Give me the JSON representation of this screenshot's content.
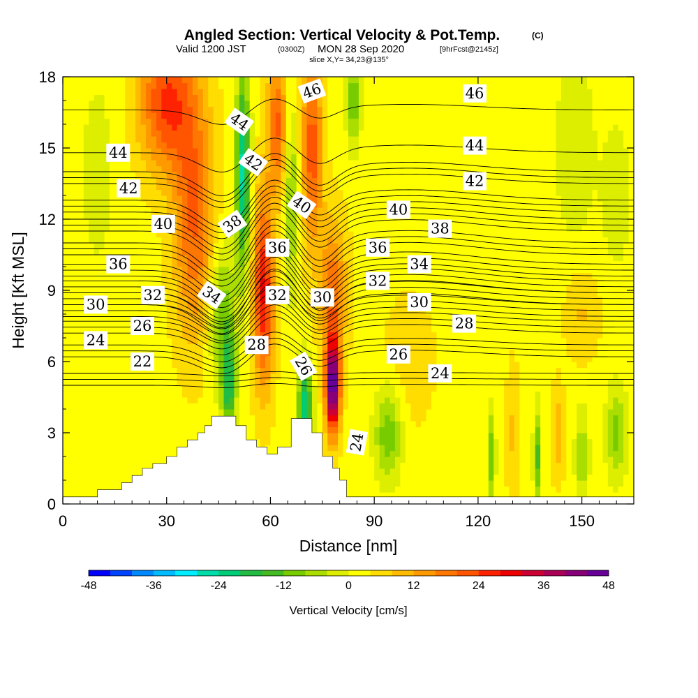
{
  "title": {
    "main": "Angled Section: Vertical Velocity & Pot.Temp.",
    "copyright": "(C)",
    "valid_prefix": "Valid 1200 JST",
    "valid_z": "(0300Z)",
    "valid_date": "MON 28 Sep 2020",
    "forecast": "[9hrFcst@2145z]",
    "slice": "slice X,Y= 34,23@135°"
  },
  "chart_data": {
    "type": "heatmap",
    "xlabel": "Distance [nm]",
    "ylabel": "Height [Kft MSL]",
    "xlim": [
      0,
      165
    ],
    "ylim": [
      0,
      18
    ],
    "x_ticks": [
      0,
      30,
      60,
      90,
      120,
      150
    ],
    "y_ticks": [
      0,
      3,
      6,
      9,
      12,
      15,
      18
    ],
    "colorbar": {
      "title": "Vertical Velocity [cm/s]",
      "min": -48,
      "max": 48,
      "step": 4,
      "tick_values": [
        -48,
        -36,
        -24,
        -12,
        0,
        12,
        24,
        36,
        48
      ],
      "colors": [
        "#0000ff",
        "#0044ff",
        "#0088ff",
        "#00bbff",
        "#00eeff",
        "#00ddaa",
        "#00cc77",
        "#22bb44",
        "#44bb22",
        "#77cc00",
        "#aadd00",
        "#ddee00",
        "#ffff00",
        "#ffdd00",
        "#ffbb00",
        "#ff9900",
        "#ff7700",
        "#ff5500",
        "#ff2200",
        "#ee0000",
        "#cc0033",
        "#aa0055",
        "#880077",
        "#660099"
      ]
    },
    "velocity_features": [
      {
        "x": 10,
        "y": 14,
        "value": -4,
        "sx": 6,
        "sy": 5
      },
      {
        "x": 30,
        "y": 17,
        "value": 22,
        "sx": 8,
        "sy": 3
      },
      {
        "x": 38,
        "y": 12,
        "value": 18,
        "sx": 6,
        "sy": 5
      },
      {
        "x": 46,
        "y": 8,
        "value": -14,
        "sx": 4,
        "sy": 3
      },
      {
        "x": 48,
        "y": 5,
        "value": -20,
        "sx": 2,
        "sy": 2
      },
      {
        "x": 52,
        "y": 14,
        "value": -28,
        "sx": 2,
        "sy": 4
      },
      {
        "x": 58,
        "y": 9,
        "value": 26,
        "sx": 3,
        "sy": 4
      },
      {
        "x": 62,
        "y": 16,
        "value": 18,
        "sx": 3,
        "sy": 3
      },
      {
        "x": 66,
        "y": 13,
        "value": -12,
        "sx": 2,
        "sy": 4
      },
      {
        "x": 70,
        "y": 4,
        "value": -26,
        "sx": 2,
        "sy": 2
      },
      {
        "x": 72,
        "y": 15,
        "value": 20,
        "sx": 3,
        "sy": 4
      },
      {
        "x": 78,
        "y": 5,
        "value": 46,
        "sx": 2,
        "sy": 2
      },
      {
        "x": 78,
        "y": 9,
        "value": 16,
        "sx": 4,
        "sy": 3
      },
      {
        "x": 84,
        "y": 17,
        "value": -14,
        "sx": 2,
        "sy": 2
      },
      {
        "x": 94,
        "y": 3,
        "value": -14,
        "sx": 4,
        "sy": 2
      },
      {
        "x": 100,
        "y": 6,
        "value": 4,
        "sx": 8,
        "sy": 3
      },
      {
        "x": 124,
        "y": 2,
        "value": -14,
        "sx": 1,
        "sy": 2
      },
      {
        "x": 130,
        "y": 3,
        "value": 6,
        "sx": 2,
        "sy": 3
      },
      {
        "x": 137,
        "y": 2,
        "value": -16,
        "sx": 1,
        "sy": 2
      },
      {
        "x": 143,
        "y": 3,
        "value": 8,
        "sx": 2,
        "sy": 2
      },
      {
        "x": 150,
        "y": 2,
        "value": -10,
        "sx": 2,
        "sy": 2
      },
      {
        "x": 160,
        "y": 3,
        "value": -12,
        "sx": 3,
        "sy": 2
      },
      {
        "x": 148,
        "y": 15,
        "value": -6,
        "sx": 6,
        "sy": 4
      },
      {
        "x": 160,
        "y": 13,
        "value": -6,
        "sx": 4,
        "sy": 3
      },
      {
        "x": 150,
        "y": 8,
        "value": 6,
        "sx": 5,
        "sy": 2
      }
    ],
    "terrain": [
      [
        0,
        0.3
      ],
      [
        10,
        0.3
      ],
      [
        10,
        0.6
      ],
      [
        14,
        0.6
      ],
      [
        17,
        0.6
      ],
      [
        17,
        0.9
      ],
      [
        20,
        0.9
      ],
      [
        20,
        1.2
      ],
      [
        23,
        1.2
      ],
      [
        23,
        1.5
      ],
      [
        26,
        1.5
      ],
      [
        26,
        1.7
      ],
      [
        30,
        1.7
      ],
      [
        30,
        2.0
      ],
      [
        33,
        2.0
      ],
      [
        33,
        2.4
      ],
      [
        36,
        2.4
      ],
      [
        36,
        2.7
      ],
      [
        39,
        2.7
      ],
      [
        39,
        3.0
      ],
      [
        41,
        3.0
      ],
      [
        41,
        3.3
      ],
      [
        43,
        3.3
      ],
      [
        43,
        3.7
      ],
      [
        50,
        3.7
      ],
      [
        50,
        3.3
      ],
      [
        53,
        3.3
      ],
      [
        53,
        2.7
      ],
      [
        56,
        2.7
      ],
      [
        56,
        2.4
      ],
      [
        59,
        2.4
      ],
      [
        59,
        2.1
      ],
      [
        62,
        2.1
      ],
      [
        62,
        2.4
      ],
      [
        66,
        2.4
      ],
      [
        66,
        3.6
      ],
      [
        72,
        3.6
      ],
      [
        72,
        3.0
      ],
      [
        75,
        3.0
      ],
      [
        75,
        2.0
      ],
      [
        78,
        2.0
      ],
      [
        78,
        1.5
      ],
      [
        80,
        1.5
      ],
      [
        80,
        1.0
      ],
      [
        82,
        1.0
      ],
      [
        82,
        0.3
      ],
      [
        165,
        0.3
      ]
    ],
    "isentropes": [
      {
        "label": "22",
        "base": 5.0,
        "shift": 0.1
      },
      {
        "label": "24",
        "base": 6.2,
        "shift": 0.7
      },
      {
        "label": "26",
        "base": 7.2,
        "shift": 0.9
      },
      {
        "label": "28",
        "base": 7.9,
        "shift": 1.0
      },
      {
        "label": "30",
        "base": 8.4,
        "shift": 1.2
      },
      {
        "label": "32",
        "base": 8.9,
        "shift": 1.3
      },
      {
        "label": "34",
        "base": 9.6,
        "shift": 1.3
      },
      {
        "label": "36",
        "base": 10.5,
        "shift": 1.3
      },
      {
        "label": "38",
        "base": 11.5,
        "shift": 1.2
      },
      {
        "label": "40",
        "base": 12.3,
        "shift": 1.1
      },
      {
        "label": "42",
        "base": 13.5,
        "shift": 1.0
      },
      {
        "label": "44",
        "base": 14.8,
        "shift": 0.8
      },
      {
        "label": "46",
        "base": 16.6,
        "shift": 0.6
      }
    ],
    "contour_labels": [
      {
        "text": "44",
        "x": 16,
        "y": 14.8,
        "angle": 0
      },
      {
        "text": "42",
        "x": 19,
        "y": 13.3,
        "angle": 0
      },
      {
        "text": "40",
        "x": 29,
        "y": 11.8,
        "angle": 0
      },
      {
        "text": "36",
        "x": 16,
        "y": 10.1,
        "angle": 0
      },
      {
        "text": "30",
        "x": 9.5,
        "y": 8.4,
        "angle": 0
      },
      {
        "text": "32",
        "x": 26,
        "y": 8.8,
        "angle": 0
      },
      {
        "text": "26",
        "x": 23,
        "y": 7.5,
        "angle": 0
      },
      {
        "text": "24",
        "x": 9.5,
        "y": 6.9,
        "angle": 0
      },
      {
        "text": "22",
        "x": 23,
        "y": 6.0,
        "angle": 0
      },
      {
        "text": "44",
        "x": 51,
        "y": 16.1,
        "angle": 35
      },
      {
        "text": "42",
        "x": 55,
        "y": 14.4,
        "angle": 35
      },
      {
        "text": "38",
        "x": 49,
        "y": 11.8,
        "angle": -35
      },
      {
        "text": "34",
        "x": 43,
        "y": 8.8,
        "angle": 35
      },
      {
        "text": "36",
        "x": 62,
        "y": 10.8,
        "angle": 0
      },
      {
        "text": "32",
        "x": 62,
        "y": 8.8,
        "angle": 0
      },
      {
        "text": "28",
        "x": 56,
        "y": 6.7,
        "angle": 0
      },
      {
        "text": "46",
        "x": 72,
        "y": 17.4,
        "angle": -20
      },
      {
        "text": "40",
        "x": 69,
        "y": 12.6,
        "angle": 35
      },
      {
        "text": "30",
        "x": 75,
        "y": 8.7,
        "angle": 0
      },
      {
        "text": "26",
        "x": 69.5,
        "y": 5.8,
        "angle": 60
      },
      {
        "text": "36",
        "x": 91,
        "y": 10.8,
        "angle": 0
      },
      {
        "text": "32",
        "x": 91,
        "y": 9.4,
        "angle": 0
      },
      {
        "text": "24",
        "x": 85,
        "y": 2.6,
        "angle": -80
      },
      {
        "text": "46",
        "x": 119,
        "y": 17.3,
        "angle": 0
      },
      {
        "text": "44",
        "x": 119,
        "y": 15.1,
        "angle": 0
      },
      {
        "text": "42",
        "x": 119,
        "y": 13.6,
        "angle": 0
      },
      {
        "text": "40",
        "x": 97,
        "y": 12.4,
        "angle": 0
      },
      {
        "text": "38",
        "x": 109,
        "y": 11.6,
        "angle": 0
      },
      {
        "text": "34",
        "x": 103,
        "y": 10.1,
        "angle": 0
      },
      {
        "text": "30",
        "x": 103,
        "y": 8.5,
        "angle": 0
      },
      {
        "text": "28",
        "x": 116,
        "y": 7.6,
        "angle": 0
      },
      {
        "text": "26",
        "x": 97,
        "y": 6.3,
        "angle": 0
      },
      {
        "text": "24",
        "x": 109,
        "y": 5.5,
        "angle": 0
      }
    ]
  }
}
